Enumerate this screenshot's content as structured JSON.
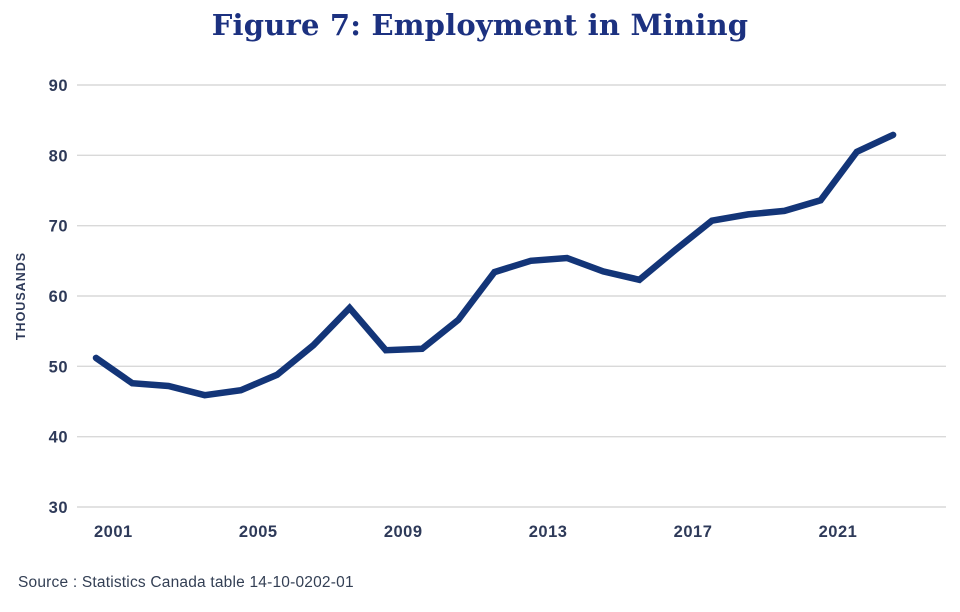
{
  "title": "Figure 7: Employment in Mining",
  "source": "Source : Statistics Canada table 14-10-0202-01",
  "colors": {
    "title": "#1c3180",
    "line": "#133578",
    "axis_text": "#2e3a59",
    "gridline": "#d9d9d9",
    "source_text": "#333f54"
  },
  "chart_data": {
    "type": "line",
    "title": "Figure 7: Employment in Mining",
    "series_name": "Employment in Mining",
    "xlabel": "",
    "ylabel": "THOUSANDS",
    "ylim": [
      30,
      90
    ],
    "yticks": [
      90,
      80,
      70,
      60,
      50,
      40,
      30
    ],
    "xticks": [
      2001,
      2005,
      2009,
      2013,
      2017,
      2021
    ],
    "grid": "horizontal-only",
    "legend_position": "none",
    "x": [
      2001,
      2002,
      2003,
      2004,
      2005,
      2006,
      2007,
      2008,
      2009,
      2010,
      2011,
      2012,
      2013,
      2014,
      2015,
      2016,
      2017,
      2018,
      2019,
      2020,
      2021,
      2022,
      2023
    ],
    "series": [
      {
        "name": "Employment in Mining",
        "values": [
          51.2,
          47.6,
          47.2,
          45.9,
          46.6,
          48.8,
          53.0,
          58.3,
          52.3,
          52.5,
          56.6,
          63.4,
          65.0,
          65.4,
          63.5,
          62.3,
          66.6,
          70.7,
          71.6,
          72.1,
          73.6,
          80.5,
          82.9
        ]
      }
    ],
    "source": "Source : Statistics Canada table 14-10-0202-01"
  }
}
